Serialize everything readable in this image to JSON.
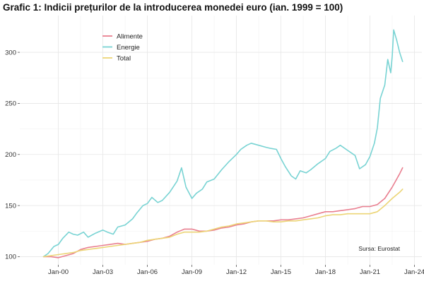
{
  "chart_data": {
    "type": "line",
    "title": "Grafic 1: Indicii prețurilor de la introducerea monedei euro (ian. 1999 = 100)",
    "xlabel": "",
    "ylabel": "",
    "x_range": [
      1997.4,
      2024.5
    ],
    "ylim": [
      92,
      336
    ],
    "x_ticks": [
      {
        "value": 2000,
        "label": "Jan-00"
      },
      {
        "value": 2003,
        "label": "Jan-03"
      },
      {
        "value": 2006,
        "label": "Jan-06"
      },
      {
        "value": 2009,
        "label": "Jan-09"
      },
      {
        "value": 2012,
        "label": "Jan-12"
      },
      {
        "value": 2015,
        "label": "Jan-15"
      },
      {
        "value": 2018,
        "label": "Jan-18"
      },
      {
        "value": 2021,
        "label": "Jan-21"
      },
      {
        "value": 2024,
        "label": "Jan-24"
      }
    ],
    "y_ticks": [
      100,
      150,
      200,
      250,
      300
    ],
    "grid": true,
    "legend_position": "top-left",
    "source": "Sursa: Eurostat",
    "series": [
      {
        "name": "Alimente",
        "color": "#e97f90",
        "x": [
          1999.0,
          1999.5,
          2000.0,
          2000.5,
          2001.0,
          2001.5,
          2002.0,
          2002.5,
          2003.0,
          2003.5,
          2004.0,
          2004.5,
          2005.0,
          2005.5,
          2006.0,
          2006.5,
          2007.0,
          2007.5,
          2008.0,
          2008.5,
          2009.0,
          2009.5,
          2010.0,
          2010.5,
          2011.0,
          2011.5,
          2012.0,
          2012.5,
          2013.0,
          2013.5,
          2014.0,
          2014.5,
          2015.0,
          2015.5,
          2016.0,
          2016.5,
          2017.0,
          2017.5,
          2018.0,
          2018.5,
          2019.0,
          2019.5,
          2020.0,
          2020.5,
          2021.0,
          2021.5,
          2022.0,
          2022.5,
          2023.0,
          2023.2
        ],
        "values": [
          100,
          100,
          99,
          101,
          103,
          107,
          109,
          110,
          111,
          112,
          113,
          112,
          113,
          114,
          115,
          117,
          118,
          120,
          124,
          127,
          127,
          125,
          125,
          126,
          128,
          129,
          131,
          132,
          134,
          135,
          135,
          135,
          136,
          136,
          137,
          138,
          140,
          142,
          144,
          144,
          145,
          146,
          147,
          149,
          149,
          151,
          157,
          168,
          181,
          187
        ]
      },
      {
        "name": "Energie",
        "color": "#78d3d3",
        "x": [
          1999.0,
          1999.3,
          1999.7,
          2000.0,
          2000.3,
          2000.7,
          2001.0,
          2001.3,
          2001.7,
          2002.0,
          2002.5,
          2003.0,
          2003.3,
          2003.7,
          2004.0,
          2004.5,
          2005.0,
          2005.3,
          2005.7,
          2006.0,
          2006.3,
          2006.7,
          2007.0,
          2007.5,
          2008.0,
          2008.3,
          2008.6,
          2009.0,
          2009.3,
          2009.7,
          2010.0,
          2010.5,
          2011.0,
          2011.5,
          2012.0,
          2012.3,
          2012.7,
          2013.0,
          2013.5,
          2014.0,
          2014.3,
          2014.7,
          2015.0,
          2015.3,
          2015.7,
          2016.0,
          2016.3,
          2016.7,
          2017.0,
          2017.5,
          2018.0,
          2018.3,
          2018.7,
          2019.0,
          2019.5,
          2020.0,
          2020.3,
          2020.7,
          2021.0,
          2021.3,
          2021.5,
          2021.7,
          2022.0,
          2022.2,
          2022.4,
          2022.5,
          2022.6,
          2022.8,
          2023.0,
          2023.2
        ],
        "values": [
          100,
          103,
          110,
          112,
          118,
          124,
          122,
          121,
          124,
          119,
          123,
          126,
          124,
          122,
          129,
          131,
          137,
          143,
          150,
          152,
          158,
          153,
          155,
          163,
          174,
          187,
          168,
          157,
          162,
          166,
          173,
          176,
          185,
          193,
          200,
          205,
          209,
          211,
          209,
          207,
          206,
          205,
          196,
          188,
          179,
          176,
          184,
          182,
          185,
          191,
          196,
          203,
          206,
          209,
          204,
          199,
          186,
          190,
          198,
          211,
          226,
          255,
          268,
          293,
          280,
          296,
          322,
          312,
          300,
          291
        ]
      },
      {
        "name": "Total",
        "color": "#ecd576",
        "x": [
          1999.0,
          1999.5,
          2000.0,
          2000.5,
          2001.0,
          2001.5,
          2002.0,
          2002.5,
          2003.0,
          2003.5,
          2004.0,
          2004.5,
          2005.0,
          2005.5,
          2006.0,
          2006.5,
          2007.0,
          2007.5,
          2008.0,
          2008.5,
          2009.0,
          2009.5,
          2010.0,
          2010.5,
          2011.0,
          2011.5,
          2012.0,
          2012.5,
          2013.0,
          2013.5,
          2014.0,
          2014.5,
          2015.0,
          2015.5,
          2016.0,
          2016.5,
          2017.0,
          2017.5,
          2018.0,
          2018.5,
          2019.0,
          2019.5,
          2020.0,
          2020.5,
          2021.0,
          2021.5,
          2022.0,
          2022.5,
          2023.0,
          2023.2
        ],
        "values": [
          100,
          101,
          102,
          103,
          104,
          106,
          107,
          108,
          109,
          110,
          111,
          112,
          113,
          114,
          116,
          117,
          118,
          119,
          122,
          124,
          124,
          124,
          125,
          127,
          129,
          130,
          132,
          133,
          134,
          135,
          135,
          134,
          134,
          135,
          135,
          136,
          137,
          138,
          140,
          141,
          141,
          142,
          142,
          142,
          142,
          144,
          150,
          157,
          163,
          166
        ]
      }
    ]
  }
}
